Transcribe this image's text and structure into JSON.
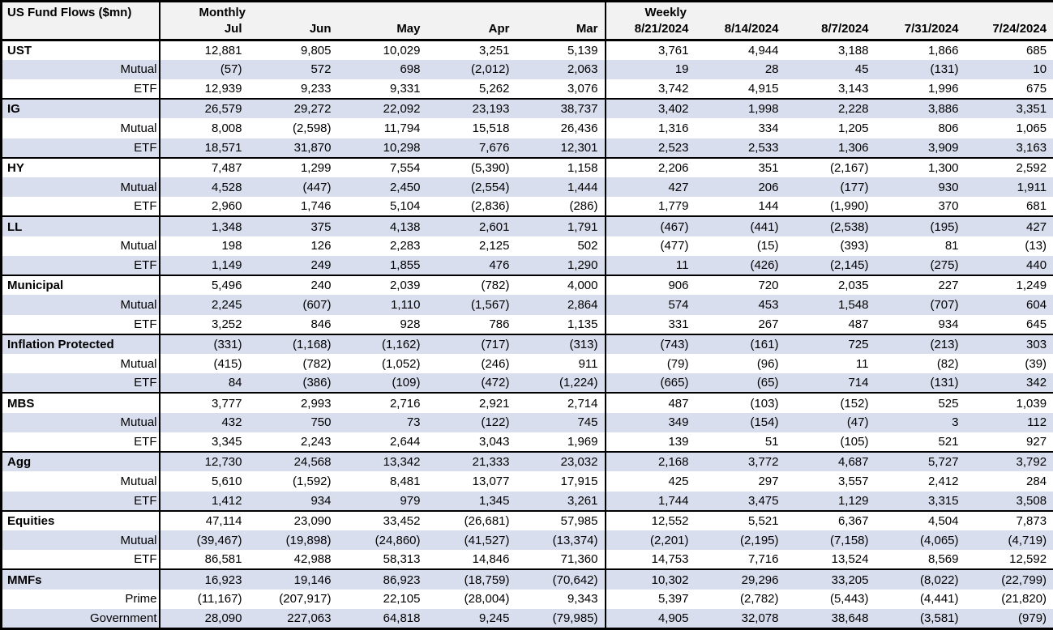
{
  "table": {
    "title": "US Fund Flows ($mn)",
    "monthly_label": "Monthly",
    "weekly_label": "Weekly",
    "monthly_columns": [
      "Jul",
      "Jun",
      "May",
      "Apr",
      "Mar"
    ],
    "weekly_columns": [
      "8/21/2024",
      "8/14/2024",
      "8/7/2024",
      "7/31/2024",
      "7/24/2024"
    ],
    "groups": [
      {
        "name": "UST",
        "rows": [
          {
            "label": "UST",
            "monthly": [
              "12,881",
              "9,805",
              "10,029",
              "3,251",
              "5,139"
            ],
            "weekly": [
              "3,761",
              "4,944",
              "3,188",
              "1,866",
              "685"
            ]
          },
          {
            "label": "Mutual",
            "monthly": [
              "(57)",
              "572",
              "698",
              "(2,012)",
              "2,063"
            ],
            "weekly": [
              "19",
              "28",
              "45",
              "(131)",
              "10"
            ]
          },
          {
            "label": "ETF",
            "monthly": [
              "12,939",
              "9,233",
              "9,331",
              "5,262",
              "3,076"
            ],
            "weekly": [
              "3,742",
              "4,915",
              "3,143",
              "1,996",
              "675"
            ]
          }
        ]
      },
      {
        "name": "IG",
        "rows": [
          {
            "label": "IG",
            "monthly": [
              "26,579",
              "29,272",
              "22,092",
              "23,193",
              "38,737"
            ],
            "weekly": [
              "3,402",
              "1,998",
              "2,228",
              "3,886",
              "3,351"
            ]
          },
          {
            "label": "Mutual",
            "monthly": [
              "8,008",
              "(2,598)",
              "11,794",
              "15,518",
              "26,436"
            ],
            "weekly": [
              "1,316",
              "334",
              "1,205",
              "806",
              "1,065"
            ]
          },
          {
            "label": "ETF",
            "monthly": [
              "18,571",
              "31,870",
              "10,298",
              "7,676",
              "12,301"
            ],
            "weekly": [
              "2,523",
              "2,533",
              "1,306",
              "3,909",
              "3,163"
            ]
          }
        ]
      },
      {
        "name": "HY",
        "rows": [
          {
            "label": "HY",
            "monthly": [
              "7,487",
              "1,299",
              "7,554",
              "(5,390)",
              "1,158"
            ],
            "weekly": [
              "2,206",
              "351",
              "(2,167)",
              "1,300",
              "2,592"
            ]
          },
          {
            "label": "Mutual",
            "monthly": [
              "4,528",
              "(447)",
              "2,450",
              "(2,554)",
              "1,444"
            ],
            "weekly": [
              "427",
              "206",
              "(177)",
              "930",
              "1,911"
            ]
          },
          {
            "label": "ETF",
            "monthly": [
              "2,960",
              "1,746",
              "5,104",
              "(2,836)",
              "(286)"
            ],
            "weekly": [
              "1,779",
              "144",
              "(1,990)",
              "370",
              "681"
            ]
          }
        ]
      },
      {
        "name": "LL",
        "rows": [
          {
            "label": "LL",
            "monthly": [
              "1,348",
              "375",
              "4,138",
              "2,601",
              "1,791"
            ],
            "weekly": [
              "(467)",
              "(441)",
              "(2,538)",
              "(195)",
              "427"
            ]
          },
          {
            "label": "Mutual",
            "monthly": [
              "198",
              "126",
              "2,283",
              "2,125",
              "502"
            ],
            "weekly": [
              "(477)",
              "(15)",
              "(393)",
              "81",
              "(13)"
            ]
          },
          {
            "label": "ETF",
            "monthly": [
              "1,149",
              "249",
              "1,855",
              "476",
              "1,290"
            ],
            "weekly": [
              "11",
              "(426)",
              "(2,145)",
              "(275)",
              "440"
            ]
          }
        ]
      },
      {
        "name": "Municipal",
        "rows": [
          {
            "label": "Municipal",
            "monthly": [
              "5,496",
              "240",
              "2,039",
              "(782)",
              "4,000"
            ],
            "weekly": [
              "906",
              "720",
              "2,035",
              "227",
              "1,249"
            ]
          },
          {
            "label": "Mutual",
            "monthly": [
              "2,245",
              "(607)",
              "1,110",
              "(1,567)",
              "2,864"
            ],
            "weekly": [
              "574",
              "453",
              "1,548",
              "(707)",
              "604"
            ]
          },
          {
            "label": "ETF",
            "monthly": [
              "3,252",
              "846",
              "928",
              "786",
              "1,135"
            ],
            "weekly": [
              "331",
              "267",
              "487",
              "934",
              "645"
            ]
          }
        ]
      },
      {
        "name": "Inflation Protected",
        "rows": [
          {
            "label": "Inflation Protected",
            "monthly": [
              "(331)",
              "(1,168)",
              "(1,162)",
              "(717)",
              "(313)"
            ],
            "weekly": [
              "(743)",
              "(161)",
              "725",
              "(213)",
              "303"
            ]
          },
          {
            "label": "Mutual",
            "monthly": [
              "(415)",
              "(782)",
              "(1,052)",
              "(246)",
              "911"
            ],
            "weekly": [
              "(79)",
              "(96)",
              "11",
              "(82)",
              "(39)"
            ]
          },
          {
            "label": "ETF",
            "monthly": [
              "84",
              "(386)",
              "(109)",
              "(472)",
              "(1,224)"
            ],
            "weekly": [
              "(665)",
              "(65)",
              "714",
              "(131)",
              "342"
            ]
          }
        ]
      },
      {
        "name": "MBS",
        "rows": [
          {
            "label": "MBS",
            "monthly": [
              "3,777",
              "2,993",
              "2,716",
              "2,921",
              "2,714"
            ],
            "weekly": [
              "487",
              "(103)",
              "(152)",
              "525",
              "1,039"
            ]
          },
          {
            "label": "Mutual",
            "monthly": [
              "432",
              "750",
              "73",
              "(122)",
              "745"
            ],
            "weekly": [
              "349",
              "(154)",
              "(47)",
              "3",
              "112"
            ]
          },
          {
            "label": "ETF",
            "monthly": [
              "3,345",
              "2,243",
              "2,644",
              "3,043",
              "1,969"
            ],
            "weekly": [
              "139",
              "51",
              "(105)",
              "521",
              "927"
            ]
          }
        ]
      },
      {
        "name": "Agg",
        "rows": [
          {
            "label": "Agg",
            "monthly": [
              "12,730",
              "24,568",
              "13,342",
              "21,333",
              "23,032"
            ],
            "weekly": [
              "2,168",
              "3,772",
              "4,687",
              "5,727",
              "3,792"
            ]
          },
          {
            "label": "Mutual",
            "monthly": [
              "5,610",
              "(1,592)",
              "8,481",
              "13,077",
              "17,915"
            ],
            "weekly": [
              "425",
              "297",
              "3,557",
              "2,412",
              "284"
            ]
          },
          {
            "label": "ETF",
            "monthly": [
              "1,412",
              "934",
              "979",
              "1,345",
              "3,261"
            ],
            "weekly": [
              "1,744",
              "3,475",
              "1,129",
              "3,315",
              "3,508"
            ]
          }
        ]
      },
      {
        "name": "Equities",
        "rows": [
          {
            "label": "Equities",
            "monthly": [
              "47,114",
              "23,090",
              "33,452",
              "(26,681)",
              "57,985"
            ],
            "weekly": [
              "12,552",
              "5,521",
              "6,367",
              "4,504",
              "7,873"
            ]
          },
          {
            "label": "Mutual",
            "monthly": [
              "(39,467)",
              "(19,898)",
              "(24,860)",
              "(41,527)",
              "(13,374)"
            ],
            "weekly": [
              "(2,201)",
              "(2,195)",
              "(7,158)",
              "(4,065)",
              "(4,719)"
            ]
          },
          {
            "label": "ETF",
            "monthly": [
              "86,581",
              "42,988",
              "58,313",
              "14,846",
              "71,360"
            ],
            "weekly": [
              "14,753",
              "7,716",
              "13,524",
              "8,569",
              "12,592"
            ]
          }
        ]
      },
      {
        "name": "MMFs",
        "rows": [
          {
            "label": "MMFs",
            "monthly": [
              "16,923",
              "19,146",
              "86,923",
              "(18,759)",
              "(70,642)"
            ],
            "weekly": [
              "10,302",
              "29,296",
              "33,205",
              "(8,022)",
              "(22,799)"
            ]
          },
          {
            "label": "Prime",
            "monthly": [
              "(11,167)",
              "(207,917)",
              "22,105",
              "(28,004)",
              "9,343"
            ],
            "weekly": [
              "5,397",
              "(2,782)",
              "(5,443)",
              "(4,441)",
              "(21,820)"
            ]
          },
          {
            "label": "Government",
            "monthly": [
              "28,090",
              "227,063",
              "64,818",
              "9,245",
              "(79,985)"
            ],
            "weekly": [
              "4,905",
              "32,078",
              "38,648",
              "(3,581)",
              "(979)"
            ]
          }
        ]
      }
    ]
  },
  "colors": {
    "stripe": "#d9deef",
    "header_bg": "#f2f2f2",
    "border": "#000000",
    "text": "#000000"
  }
}
